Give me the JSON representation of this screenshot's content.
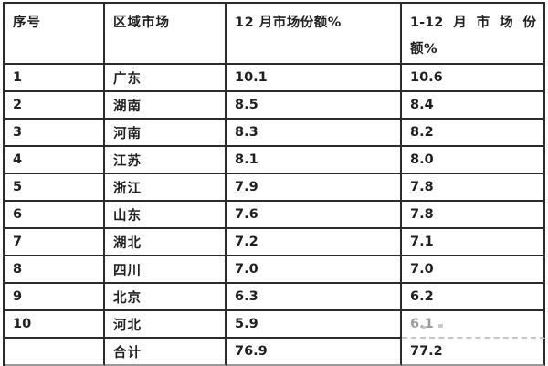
{
  "table": {
    "header": {
      "col1": "序号",
      "col2": "区域市场",
      "col3": "12 月市场份额%",
      "col4_line1_parts": [
        "1-12",
        "月",
        "市",
        "场",
        "份"
      ],
      "col4_line2": "额%"
    },
    "rows": [
      {
        "index": "1",
        "region": "广东",
        "dec_share": "10.1",
        "ytd_share": "10.6"
      },
      {
        "index": "2",
        "region": "湖南",
        "dec_share": "8.5",
        "ytd_share": "8.4"
      },
      {
        "index": "3",
        "region": "河南",
        "dec_share": "8.3",
        "ytd_share": "8.2"
      },
      {
        "index": "4",
        "region": "江苏",
        "dec_share": "8.1",
        "ytd_share": "8.0"
      },
      {
        "index": "5",
        "region": "浙江",
        "dec_share": "7.9",
        "ytd_share": "7.8"
      },
      {
        "index": "6",
        "region": "山东",
        "dec_share": "7.6",
        "ytd_share": "7.8"
      },
      {
        "index": "7",
        "region": "湖北",
        "dec_share": "7.2",
        "ytd_share": "7.1"
      },
      {
        "index": "8",
        "region": "四川",
        "dec_share": "7.0",
        "ytd_share": "7.0"
      },
      {
        "index": "9",
        "region": "北京",
        "dec_share": "6.3",
        "ytd_share": "6.2"
      },
      {
        "index": "10",
        "region": "河北",
        "dec_share": "5.9",
        "ytd_share": "6.1",
        "ytd_muted": true,
        "faded_divider_below": true
      },
      {
        "index": "",
        "region": "合计",
        "dec_share": "76.9",
        "ytd_share": "77.2",
        "is_total": true
      }
    ],
    "colors": {
      "text": "#1f1f1f",
      "border": "#2b2b2b",
      "muted_value": "#9d9d9d",
      "faded_border": "#c6c6c6",
      "bottom_border": "#9a9a9a",
      "background": "#ffffff"
    }
  }
}
